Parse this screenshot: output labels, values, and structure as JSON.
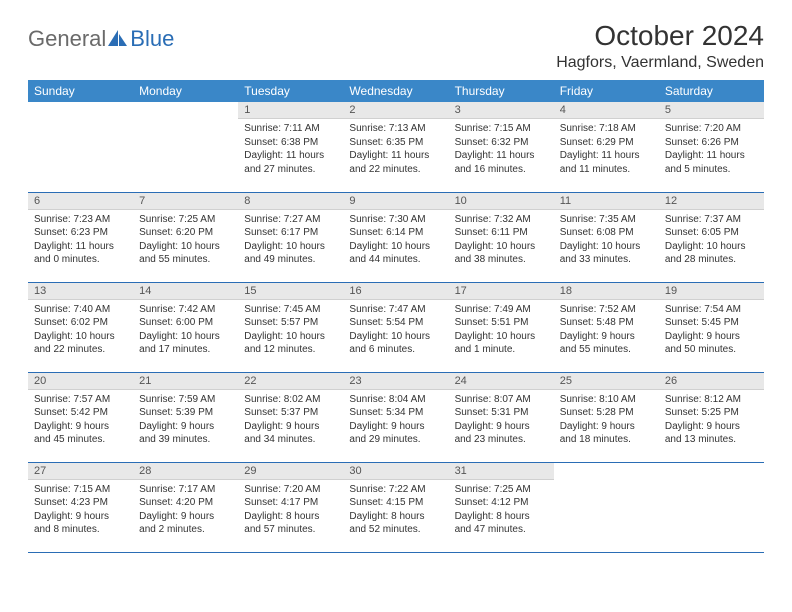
{
  "logo": {
    "part1": "General",
    "part2": "Blue"
  },
  "title": "October 2024",
  "location": "Hagfors, Vaermland, Sweden",
  "dayHeaders": [
    "Sunday",
    "Monday",
    "Tuesday",
    "Wednesday",
    "Thursday",
    "Friday",
    "Saturday"
  ],
  "colors": {
    "headerBg": "#3a87c8",
    "headerText": "#ffffff",
    "rowBorder": "#2a6db5",
    "dayNumBg": "#e8e8e8",
    "logoBlue": "#2a6db5",
    "logoGray": "#6a6a6a",
    "bodyText": "#333333"
  },
  "weeks": [
    [
      null,
      null,
      {
        "n": "1",
        "sr": "Sunrise: 7:11 AM",
        "ss": "Sunset: 6:38 PM",
        "dl": "Daylight: 11 hours and 27 minutes."
      },
      {
        "n": "2",
        "sr": "Sunrise: 7:13 AM",
        "ss": "Sunset: 6:35 PM",
        "dl": "Daylight: 11 hours and 22 minutes."
      },
      {
        "n": "3",
        "sr": "Sunrise: 7:15 AM",
        "ss": "Sunset: 6:32 PM",
        "dl": "Daylight: 11 hours and 16 minutes."
      },
      {
        "n": "4",
        "sr": "Sunrise: 7:18 AM",
        "ss": "Sunset: 6:29 PM",
        "dl": "Daylight: 11 hours and 11 minutes."
      },
      {
        "n": "5",
        "sr": "Sunrise: 7:20 AM",
        "ss": "Sunset: 6:26 PM",
        "dl": "Daylight: 11 hours and 5 minutes."
      }
    ],
    [
      {
        "n": "6",
        "sr": "Sunrise: 7:23 AM",
        "ss": "Sunset: 6:23 PM",
        "dl": "Daylight: 11 hours and 0 minutes."
      },
      {
        "n": "7",
        "sr": "Sunrise: 7:25 AM",
        "ss": "Sunset: 6:20 PM",
        "dl": "Daylight: 10 hours and 55 minutes."
      },
      {
        "n": "8",
        "sr": "Sunrise: 7:27 AM",
        "ss": "Sunset: 6:17 PM",
        "dl": "Daylight: 10 hours and 49 minutes."
      },
      {
        "n": "9",
        "sr": "Sunrise: 7:30 AM",
        "ss": "Sunset: 6:14 PM",
        "dl": "Daylight: 10 hours and 44 minutes."
      },
      {
        "n": "10",
        "sr": "Sunrise: 7:32 AM",
        "ss": "Sunset: 6:11 PM",
        "dl": "Daylight: 10 hours and 38 minutes."
      },
      {
        "n": "11",
        "sr": "Sunrise: 7:35 AM",
        "ss": "Sunset: 6:08 PM",
        "dl": "Daylight: 10 hours and 33 minutes."
      },
      {
        "n": "12",
        "sr": "Sunrise: 7:37 AM",
        "ss": "Sunset: 6:05 PM",
        "dl": "Daylight: 10 hours and 28 minutes."
      }
    ],
    [
      {
        "n": "13",
        "sr": "Sunrise: 7:40 AM",
        "ss": "Sunset: 6:02 PM",
        "dl": "Daylight: 10 hours and 22 minutes."
      },
      {
        "n": "14",
        "sr": "Sunrise: 7:42 AM",
        "ss": "Sunset: 6:00 PM",
        "dl": "Daylight: 10 hours and 17 minutes."
      },
      {
        "n": "15",
        "sr": "Sunrise: 7:45 AM",
        "ss": "Sunset: 5:57 PM",
        "dl": "Daylight: 10 hours and 12 minutes."
      },
      {
        "n": "16",
        "sr": "Sunrise: 7:47 AM",
        "ss": "Sunset: 5:54 PM",
        "dl": "Daylight: 10 hours and 6 minutes."
      },
      {
        "n": "17",
        "sr": "Sunrise: 7:49 AM",
        "ss": "Sunset: 5:51 PM",
        "dl": "Daylight: 10 hours and 1 minute."
      },
      {
        "n": "18",
        "sr": "Sunrise: 7:52 AM",
        "ss": "Sunset: 5:48 PM",
        "dl": "Daylight: 9 hours and 55 minutes."
      },
      {
        "n": "19",
        "sr": "Sunrise: 7:54 AM",
        "ss": "Sunset: 5:45 PM",
        "dl": "Daylight: 9 hours and 50 minutes."
      }
    ],
    [
      {
        "n": "20",
        "sr": "Sunrise: 7:57 AM",
        "ss": "Sunset: 5:42 PM",
        "dl": "Daylight: 9 hours and 45 minutes."
      },
      {
        "n": "21",
        "sr": "Sunrise: 7:59 AM",
        "ss": "Sunset: 5:39 PM",
        "dl": "Daylight: 9 hours and 39 minutes."
      },
      {
        "n": "22",
        "sr": "Sunrise: 8:02 AM",
        "ss": "Sunset: 5:37 PM",
        "dl": "Daylight: 9 hours and 34 minutes."
      },
      {
        "n": "23",
        "sr": "Sunrise: 8:04 AM",
        "ss": "Sunset: 5:34 PM",
        "dl": "Daylight: 9 hours and 29 minutes."
      },
      {
        "n": "24",
        "sr": "Sunrise: 8:07 AM",
        "ss": "Sunset: 5:31 PM",
        "dl": "Daylight: 9 hours and 23 minutes."
      },
      {
        "n": "25",
        "sr": "Sunrise: 8:10 AM",
        "ss": "Sunset: 5:28 PM",
        "dl": "Daylight: 9 hours and 18 minutes."
      },
      {
        "n": "26",
        "sr": "Sunrise: 8:12 AM",
        "ss": "Sunset: 5:25 PM",
        "dl": "Daylight: 9 hours and 13 minutes."
      }
    ],
    [
      {
        "n": "27",
        "sr": "Sunrise: 7:15 AM",
        "ss": "Sunset: 4:23 PM",
        "dl": "Daylight: 9 hours and 8 minutes."
      },
      {
        "n": "28",
        "sr": "Sunrise: 7:17 AM",
        "ss": "Sunset: 4:20 PM",
        "dl": "Daylight: 9 hours and 2 minutes."
      },
      {
        "n": "29",
        "sr": "Sunrise: 7:20 AM",
        "ss": "Sunset: 4:17 PM",
        "dl": "Daylight: 8 hours and 57 minutes."
      },
      {
        "n": "30",
        "sr": "Sunrise: 7:22 AM",
        "ss": "Sunset: 4:15 PM",
        "dl": "Daylight: 8 hours and 52 minutes."
      },
      {
        "n": "31",
        "sr": "Sunrise: 7:25 AM",
        "ss": "Sunset: 4:12 PM",
        "dl": "Daylight: 8 hours and 47 minutes."
      },
      null,
      null
    ]
  ]
}
